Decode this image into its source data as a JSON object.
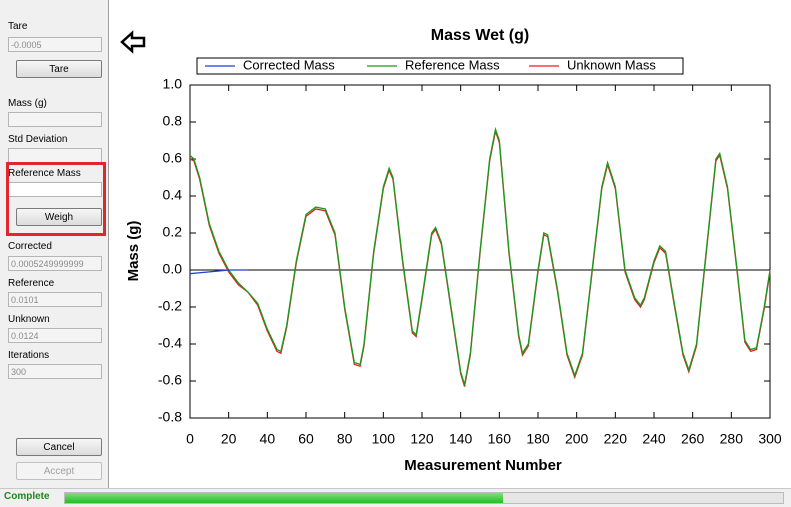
{
  "sidebar": {
    "tare_label": "Tare",
    "tare_value": "-0.0005",
    "tare_button": "Tare",
    "mass_label": "Mass (g)",
    "std_label": "Std Deviation",
    "reference_mass_label": "Reference Mass",
    "weigh_button": "Weigh",
    "corrected_label": "Corrected",
    "corrected_value": "0.0005249999999",
    "reference_label": "Reference",
    "reference_value": "0.0101",
    "unknown_label": "Unknown",
    "unknown_value": "0.0124",
    "iterations_label": "Iterations",
    "iterations_value": "300",
    "cancel_button": "Cancel",
    "accept_button": "Accept"
  },
  "status": {
    "text": "Complete"
  },
  "chart_data": {
    "type": "line",
    "title": "Mass Wet (g)",
    "x_label": "Measurement Number",
    "y_label": "Mass (g)",
    "x": [
      0,
      2,
      5,
      10,
      15,
      20,
      25,
      30,
      35,
      40,
      45,
      47,
      50,
      55,
      60,
      65,
      70,
      75,
      80,
      85,
      88,
      90,
      95,
      100,
      103,
      105,
      110,
      115,
      117,
      120,
      125,
      127,
      130,
      135,
      140,
      142,
      145,
      150,
      155,
      158,
      160,
      165,
      170,
      172,
      175,
      180,
      183,
      185,
      190,
      195,
      199,
      203,
      208,
      213,
      216,
      220,
      225,
      230,
      233,
      235,
      240,
      243,
      246,
      250,
      255,
      258,
      262,
      267,
      272,
      274,
      278,
      283,
      287,
      290,
      293,
      297,
      300
    ],
    "series": [
      {
        "name": "Corrected Mass",
        "color": "#1f3fd0",
        "x": [
          0,
          5,
          10,
          15,
          20,
          25,
          30
        ],
        "values": [
          -0.02,
          -0.015,
          -0.01,
          -0.005,
          0,
          0,
          0
        ]
      },
      {
        "name": "Reference Mass",
        "color": "#1a9a1a",
        "values": [
          0.62,
          0.6,
          0.5,
          0.25,
          0.1,
          0,
          -0.07,
          -0.12,
          -0.18,
          -0.32,
          -0.43,
          -0.44,
          -0.3,
          0.05,
          0.3,
          0.34,
          0.33,
          0.2,
          -0.2,
          -0.5,
          -0.51,
          -0.4,
          0.1,
          0.45,
          0.55,
          0.5,
          0.05,
          -0.33,
          -0.35,
          -0.15,
          0.2,
          0.23,
          0.15,
          -0.2,
          -0.55,
          -0.62,
          -0.45,
          0.1,
          0.6,
          0.76,
          0.7,
          0.1,
          -0.35,
          -0.45,
          -0.4,
          0,
          0.2,
          0.19,
          -0.1,
          -0.45,
          -0.57,
          -0.45,
          0,
          0.45,
          0.58,
          0.45,
          0,
          -0.15,
          -0.19,
          -0.15,
          0.05,
          0.13,
          0.1,
          -0.15,
          -0.45,
          -0.54,
          -0.4,
          0.1,
          0.6,
          0.63,
          0.45,
          0,
          -0.38,
          -0.43,
          -0.42,
          -0.2,
          0
        ]
      },
      {
        "name": "Unknown Mass",
        "color": "#e02020",
        "values": [
          0.6,
          0.59,
          0.49,
          0.24,
          0.09,
          -0.01,
          -0.08,
          -0.12,
          -0.19,
          -0.33,
          -0.44,
          -0.45,
          -0.31,
          0.04,
          0.29,
          0.33,
          0.32,
          0.19,
          -0.21,
          -0.51,
          -0.52,
          -0.41,
          0.09,
          0.44,
          0.54,
          0.49,
          0.04,
          -0.34,
          -0.36,
          -0.16,
          0.19,
          0.22,
          0.14,
          -0.21,
          -0.56,
          -0.63,
          -0.46,
          0.09,
          0.59,
          0.75,
          0.69,
          0.09,
          -0.36,
          -0.46,
          -0.41,
          -0.01,
          0.19,
          0.18,
          -0.11,
          -0.46,
          -0.58,
          -0.46,
          -0.01,
          0.44,
          0.57,
          0.44,
          -0.01,
          -0.16,
          -0.2,
          -0.16,
          0.04,
          0.12,
          0.09,
          -0.16,
          -0.46,
          -0.55,
          -0.41,
          0.09,
          0.59,
          0.62,
          0.44,
          -0.01,
          -0.39,
          -0.44,
          -0.43,
          -0.21,
          -0.01
        ]
      }
    ],
    "xlim": [
      0,
      300
    ],
    "ylim": [
      -0.8,
      1.0
    ],
    "xticks": [
      0,
      20,
      40,
      60,
      80,
      100,
      120,
      140,
      160,
      180,
      200,
      220,
      240,
      260,
      280,
      300
    ],
    "yticks": [
      {
        "value": 1,
        "label": "1.0"
      },
      0.8,
      0.6,
      0.4,
      0.2,
      {
        "value": 0,
        "label": "0.0"
      },
      -0.2,
      -0.4,
      -0.6,
      -0.8
    ]
  }
}
